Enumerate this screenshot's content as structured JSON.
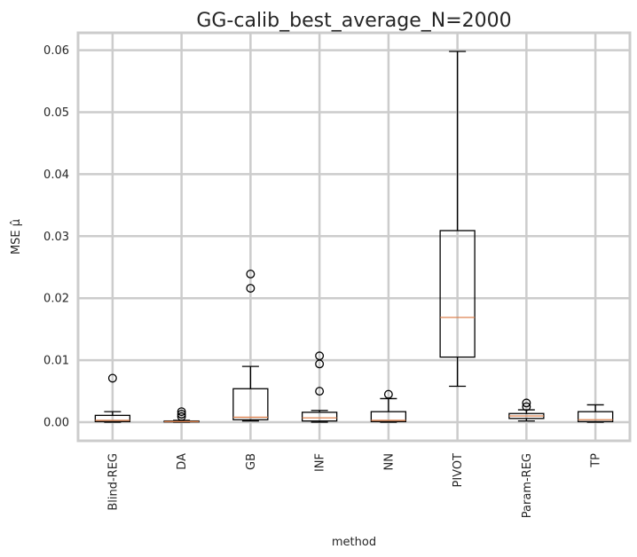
{
  "chart_data": {
    "type": "box",
    "title": "GG-calib_best_average_N=2000",
    "xlabel": "method",
    "ylabel": "MSE μ̂",
    "ylim": [
      -0.003,
      0.0628
    ],
    "yticks": [
      0.0,
      0.01,
      0.02,
      0.03,
      0.04,
      0.05,
      0.06
    ],
    "ytick_labels": [
      "0.00",
      "0.01",
      "0.02",
      "0.03",
      "0.04",
      "0.05",
      "0.06"
    ],
    "grid": true,
    "colors": {
      "box": "#000000",
      "median": "#dd8452",
      "grid": "#cccccc",
      "frame": "#cccccc"
    },
    "categories": [
      "Blind-REG",
      "DA",
      "GB",
      "INF",
      "NN",
      "PIVOT",
      "Param-REG",
      "TP"
    ],
    "boxes": [
      {
        "label": "Blind-REG",
        "whisker_low": 0.0,
        "q1": 0.0001,
        "median": 0.0003,
        "q3": 0.0011,
        "whisker_high": 0.0017,
        "fliers": [
          0.0071
        ]
      },
      {
        "label": "DA",
        "whisker_low": 0.0,
        "q1": 5e-05,
        "median": 0.0001,
        "q3": 0.0002,
        "whisker_high": 0.0003,
        "fliers": [
          0.0009,
          0.0013,
          0.0017
        ]
      },
      {
        "label": "GB",
        "whisker_low": 0.0002,
        "q1": 0.0004,
        "median": 0.0008,
        "q3": 0.0054,
        "whisker_high": 0.009,
        "fliers": [
          0.0216,
          0.0239
        ]
      },
      {
        "label": "INF",
        "whisker_low": 0.0,
        "q1": 0.0002,
        "median": 0.0007,
        "q3": 0.0016,
        "whisker_high": 0.0019,
        "fliers": [
          0.005,
          0.0094,
          0.0107
        ]
      },
      {
        "label": "NN",
        "whisker_low": 0.0,
        "q1": 0.0001,
        "median": 0.0003,
        "q3": 0.0017,
        "whisker_high": 0.0038,
        "fliers": [
          0.0045
        ]
      },
      {
        "label": "PIVOT",
        "whisker_low": 0.0058,
        "q1": 0.0105,
        "median": 0.0169,
        "q3": 0.0309,
        "whisker_high": 0.0598,
        "fliers": []
      },
      {
        "label": "Param-REG",
        "whisker_low": 0.0002,
        "q1": 0.0006,
        "median": 0.001,
        "q3": 0.0014,
        "whisker_high": 0.002,
        "fliers": [
          0.0025,
          0.0031
        ]
      },
      {
        "label": "TP",
        "whisker_low": 0.0,
        "q1": 0.0001,
        "median": 0.0004,
        "q3": 0.0017,
        "whisker_high": 0.0028,
        "fliers": []
      }
    ]
  }
}
